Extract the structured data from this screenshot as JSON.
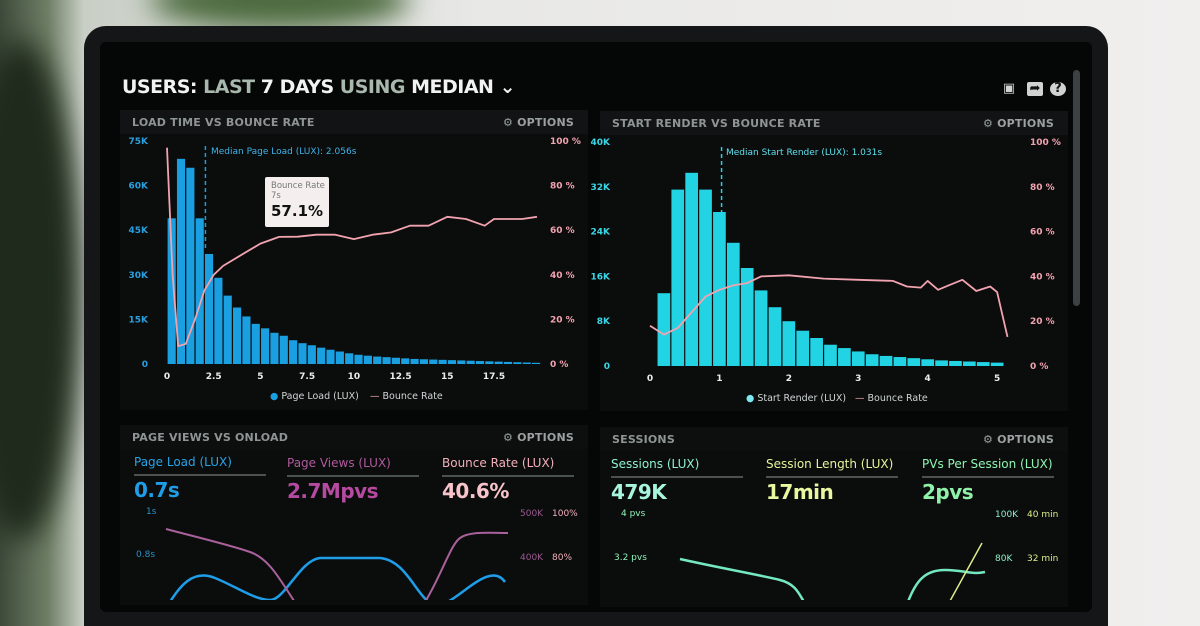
{
  "header": {
    "title_a": "USERS:",
    "title_b": "LAST",
    "title_c": "7 DAYS",
    "title_d": "USING",
    "title_e": "MEDIAN",
    "icons": [
      "monitor-icon",
      "share-icon",
      "help-icon"
    ]
  },
  "colors": {
    "blue": "#1a9fe0",
    "cyan": "#22d3e4",
    "pink": "#f2a3b0",
    "purple": "#b04a9a",
    "mint": "#74e8c0",
    "yellow": "#d8f08a",
    "green": "#7ef0a8"
  },
  "options_label": "OPTIONS",
  "chart_data": [
    {
      "type": "bar",
      "title": "LOAD TIME VS BOUNCE RATE",
      "x_ticks": [
        "0",
        "2.5",
        "5",
        "7.5",
        "10",
        "12.5",
        "15",
        "17.5"
      ],
      "y_left_ticks": [
        "0",
        "15K",
        "30K",
        "45K",
        "60K",
        "75K"
      ],
      "y_right_ticks": [
        "0 %",
        "20 %",
        "40 %",
        "60 %",
        "80 %",
        "100 %"
      ],
      "xlim": [
        0,
        19.8
      ],
      "ylim_left": [
        0,
        75000
      ],
      "ylim_right": [
        0,
        100
      ],
      "annotation": "Median Page Load (LUX): 2.056s",
      "median": 2.056,
      "tooltip": {
        "label": "Bounce Rate",
        "x": "7s",
        "value": "57.1%"
      },
      "legend": [
        "Page Load (LUX)",
        "Bounce Rate"
      ],
      "bar_width": 0.5,
      "bars": [
        49000,
        69000,
        66000,
        49000,
        37000,
        29000,
        23000,
        19000,
        16000,
        13500,
        12000,
        10500,
        9500,
        8000,
        7000,
        6300,
        5500,
        4800,
        4200,
        3600,
        3100,
        2800,
        2500,
        2300,
        2100,
        1900,
        1700,
        1600,
        1500,
        1400,
        1300,
        1200,
        1100,
        1000,
        900,
        800,
        700,
        600,
        500,
        400
      ],
      "line": [
        [
          0,
          97
        ],
        [
          0.3,
          40
        ],
        [
          0.6,
          8
        ],
        [
          1,
          9
        ],
        [
          1.5,
          20
        ],
        [
          2,
          33
        ],
        [
          2.5,
          40
        ],
        [
          3,
          44
        ],
        [
          4,
          49
        ],
        [
          5,
          54
        ],
        [
          6,
          57
        ],
        [
          7,
          57.1
        ],
        [
          8,
          58
        ],
        [
          9,
          58
        ],
        [
          10,
          56
        ],
        [
          11,
          58
        ],
        [
          12,
          59
        ],
        [
          13,
          62
        ],
        [
          14,
          62
        ],
        [
          15,
          66
        ],
        [
          16,
          65
        ],
        [
          17,
          62
        ],
        [
          17.5,
          65
        ],
        [
          19,
          65
        ],
        [
          19.8,
          66
        ]
      ]
    },
    {
      "type": "bar",
      "title": "START RENDER VS BOUNCE RATE",
      "x_ticks": [
        "0",
        "1",
        "2",
        "3",
        "4",
        "5"
      ],
      "y_left_ticks": [
        "0",
        "8K",
        "16K",
        "24K",
        "32K",
        "40K"
      ],
      "y_right_ticks": [
        "0 %",
        "20 %",
        "40 %",
        "60 %",
        "80 %",
        "100 %"
      ],
      "xlim": [
        0,
        5.2
      ],
      "ylim_left": [
        0,
        40000
      ],
      "ylim_right": [
        0,
        100
      ],
      "annotation": "Median Start Render (LUX): 1.031s",
      "median": 1.031,
      "legend": [
        "Start Render (LUX)",
        "Bounce Rate"
      ],
      "bar_width": 0.2,
      "bars": [
        13000,
        31500,
        34500,
        31500,
        27500,
        22000,
        17500,
        13500,
        10500,
        8000,
        6300,
        5000,
        3800,
        3200,
        2600,
        2100,
        1800,
        1600,
        1400,
        1200,
        1000,
        900,
        800,
        700,
        600
      ],
      "line": [
        [
          0,
          18
        ],
        [
          0.2,
          14
        ],
        [
          0.4,
          17
        ],
        [
          0.6,
          24
        ],
        [
          0.8,
          31
        ],
        [
          1,
          34
        ],
        [
          1.2,
          36
        ],
        [
          1.4,
          37
        ],
        [
          1.6,
          40
        ],
        [
          2,
          40.5
        ],
        [
          2.5,
          39
        ],
        [
          3,
          38.5
        ],
        [
          3.5,
          38
        ],
        [
          3.7,
          35.5
        ],
        [
          3.9,
          35
        ],
        [
          4,
          38
        ],
        [
          4.15,
          34
        ],
        [
          4.3,
          36
        ],
        [
          4.5,
          38.5
        ],
        [
          4.7,
          33.5
        ],
        [
          4.9,
          35.5
        ],
        [
          5,
          33
        ],
        [
          5.15,
          13
        ]
      ]
    }
  ],
  "page_views": {
    "title": "PAGE VIEWS VS ONLOAD",
    "metrics": [
      {
        "label": "Page Load (LUX)",
        "value": "0.7s"
      },
      {
        "label": "Page Views (LUX)",
        "value": "2.7Mpvs"
      },
      {
        "label": "Bounce Rate (LUX)",
        "value": "40.6%"
      }
    ],
    "y_left": [
      "1s",
      "0.8s"
    ],
    "y_mid": [
      "500K",
      "400K"
    ],
    "y_right": [
      "100%",
      "80%"
    ]
  },
  "sessions": {
    "title": "SESSIONS",
    "metrics": [
      {
        "label": "Sessions (LUX)",
        "value": "479K"
      },
      {
        "label": "Session Length (LUX)",
        "value": "17min"
      },
      {
        "label": "PVs Per Session (LUX)",
        "value": "2pvs"
      }
    ],
    "y_left": [
      "4 pvs",
      "3.2 pvs"
    ],
    "y_mid": [
      "100K",
      "80K"
    ],
    "y_right": [
      "40 min",
      "32 min"
    ]
  }
}
